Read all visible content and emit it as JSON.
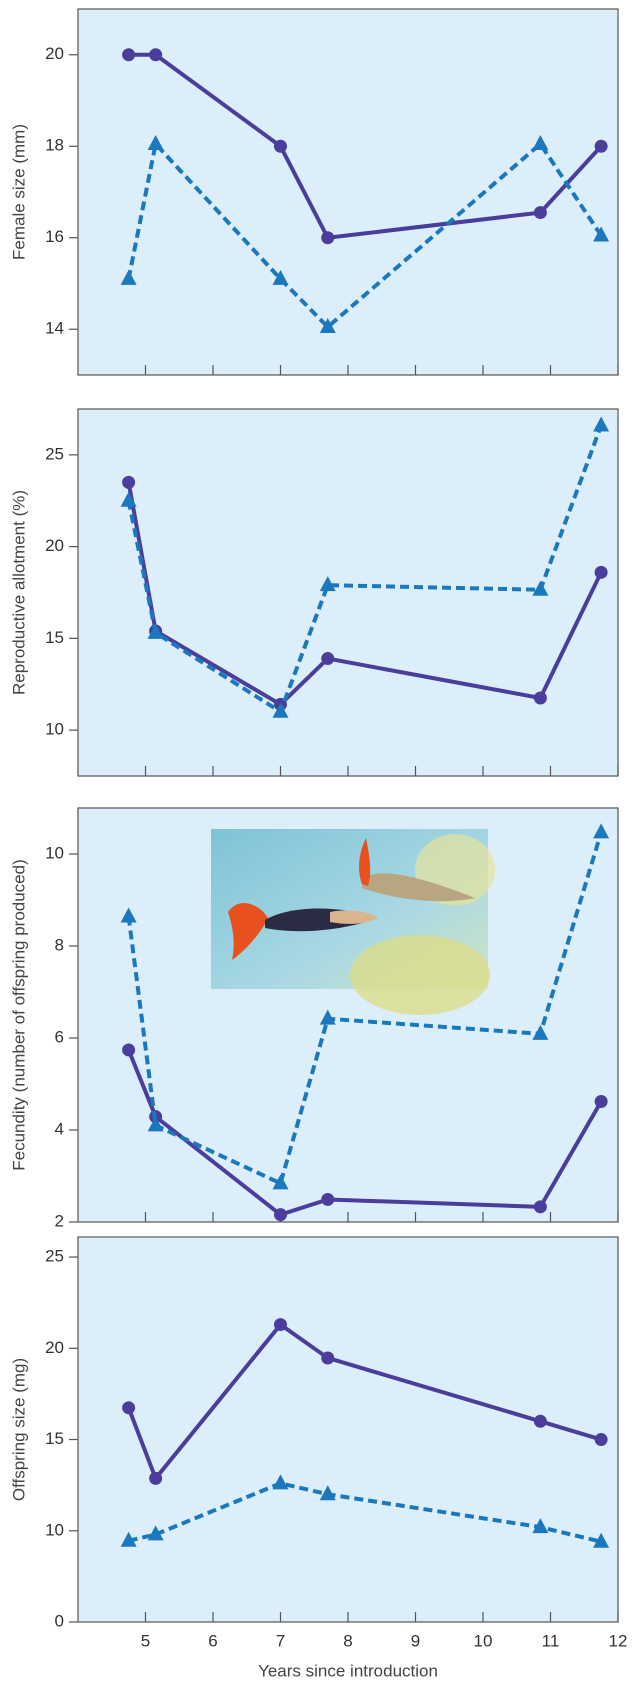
{
  "chart_data": [
    {
      "type": "line",
      "ylabel": "Female size (mm)",
      "x": [
        4.75,
        5.15,
        7.0,
        7.7,
        10.85,
        11.75
      ],
      "xlim": [
        4,
        12
      ],
      "ylim": [
        13,
        21
      ],
      "yticks": [
        14,
        16,
        18,
        20
      ],
      "series": [
        {
          "color": "#4a3d9c",
          "marker": "circle",
          "dashed": false,
          "values": [
            20,
            20,
            18,
            16,
            16.55,
            18
          ]
        },
        {
          "color": "#1b78bd",
          "marker": "triangle",
          "dashed": true,
          "values": [
            15.1,
            18.05,
            15.1,
            14.05,
            18.05,
            16.05
          ]
        }
      ]
    },
    {
      "type": "line",
      "ylabel": "Reproductive allotment (%)",
      "x": [
        4.75,
        5.15,
        7.0,
        7.7,
        10.85,
        11.75
      ],
      "xlim": [
        4,
        12
      ],
      "ylim": [
        7.5,
        27.5
      ],
      "yticks": [
        10,
        15,
        20,
        25
      ],
      "series": [
        {
          "color": "#4a3d9c",
          "marker": "circle",
          "dashed": false,
          "values": [
            23.5,
            15.4,
            11.4,
            13.9,
            11.75,
            18.6
          ]
        },
        {
          "color": "#1b78bd",
          "marker": "triangle",
          "dashed": true,
          "values": [
            22.5,
            15.3,
            11.0,
            17.9,
            17.65,
            26.6
          ]
        }
      ]
    },
    {
      "type": "line",
      "ylabel": "Fecundity (number of offspring produced)",
      "x": [
        4.75,
        5.15,
        7.0,
        7.7,
        10.85,
        11.75
      ],
      "xlim": [
        4,
        12
      ],
      "ylim": [
        2,
        11
      ],
      "yticks": [
        2,
        4,
        6,
        8,
        10
      ],
      "series": [
        {
          "color": "#4a3d9c",
          "marker": "circle",
          "dashed": false,
          "values": [
            5.74,
            4.29,
            2.16,
            2.49,
            2.33,
            4.62
          ]
        },
        {
          "color": "#1b78bd",
          "marker": "triangle",
          "dashed": true,
          "values": [
            8.64,
            4.1,
            2.84,
            6.42,
            6.09,
            10.47
          ]
        }
      ]
    },
    {
      "type": "line",
      "ylabel": "Offspring size (mg)",
      "xlabel": "Years since introduction",
      "x": [
        4.75,
        5.15,
        7.0,
        7.7,
        10.85,
        11.75
      ],
      "xlim": [
        4,
        12
      ],
      "xticks": [
        5,
        6,
        7,
        8,
        9,
        10,
        11,
        12
      ],
      "ylim": [
        0,
        26.1
      ],
      "yticks": [
        0,
        10,
        15,
        20,
        25
      ],
      "yscale": "tick-spaced",
      "series": [
        {
          "color": "#4a3d9c",
          "marker": "circle",
          "dashed": false,
          "values": [
            16.74,
            12.87,
            21.3,
            19.47,
            16.0,
            15.0
          ]
        },
        {
          "color": "#1b78bd",
          "marker": "triangle",
          "dashed": true,
          "values": [
            8.9,
            9.6,
            12.6,
            12.0,
            10.2,
            8.8
          ]
        }
      ]
    }
  ]
}
